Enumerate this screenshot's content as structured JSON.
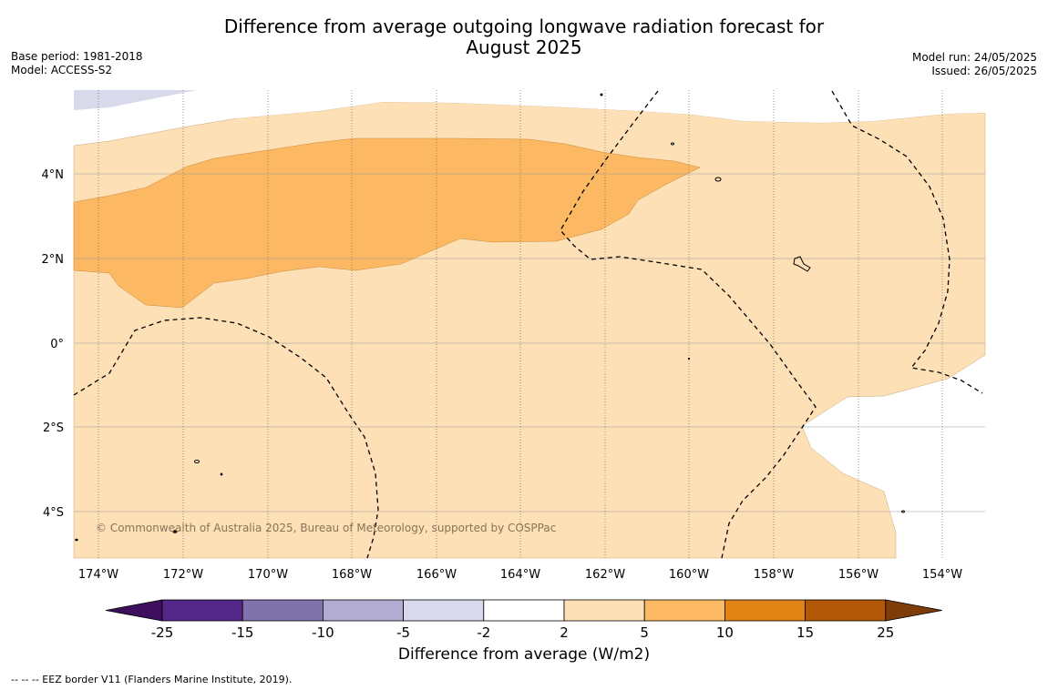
{
  "title_line1": "Difference from average outgoing longwave radiation forecast for",
  "title_line2": "August 2025",
  "base_period": "Base period: 1981-2018",
  "model": "Model: ACCESS-S2",
  "model_run": "Model run: 24/05/2025",
  "issued": "Issued: 26/05/2025",
  "copyright": "© Commonwealth of Australia 2025, Bureau of Meteorology, supported by COSPPac",
  "footer_note": "-- -- -- EEZ border V11 (Flanders Marine Institute, 2019).",
  "colorbar": {
    "label": "Difference from average (W/m2)",
    "ticks": [
      "-25",
      "-15",
      "-10",
      "-5",
      "-2",
      "2",
      "5",
      "10",
      "15",
      "25"
    ],
    "colors": [
      "#3f0f5e",
      "#532888",
      "#8073ac",
      "#b2abd2",
      "#d8daeb",
      "#ffffff",
      "#fde0b6",
      "#fdb863",
      "#e08214",
      "#b35806",
      "#7f3b08"
    ]
  },
  "map": {
    "lon_labels": [
      "174°W",
      "172°W",
      "170°W",
      "168°W",
      "166°W",
      "164°W",
      "162°W",
      "160°W",
      "158°W",
      "156°W",
      "154°W"
    ],
    "lat_labels": [
      "4°N",
      "2°N",
      "0°",
      "2°S",
      "4°S"
    ]
  }
}
